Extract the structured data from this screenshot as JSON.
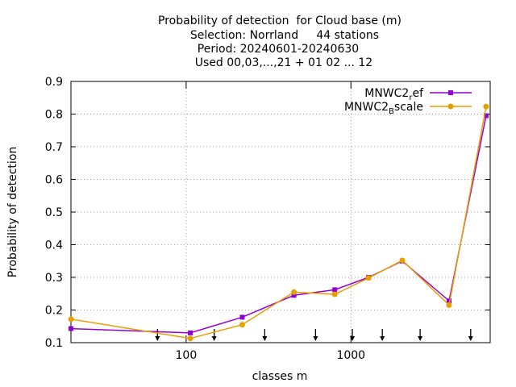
{
  "chart_data": {
    "type": "line",
    "title": [
      "Probability of detection  for Cloud base (m)",
      "Selection: Norrland     44 stations",
      "Period: 20240601-20240630",
      "Used 00,03,...,21 + 01 02 ... 12"
    ],
    "xlabel": "classes m",
    "ylabel": "Probability of detection",
    "xlog": true,
    "grid": true,
    "legend": "top-right",
    "xlim": [
      20,
      7000
    ],
    "xticks": [
      100,
      1000
    ],
    "ylim": [
      0.1,
      0.9
    ],
    "yticks": [
      0.1,
      0.2,
      0.3,
      0.4,
      0.5,
      0.6,
      0.7,
      0.8,
      0.9
    ],
    "x": [
      20,
      106,
      219,
      451,
      798,
      1280,
      2050,
      3940,
      6610
    ],
    "series": [
      {
        "name": "MNWC2_ref",
        "color": "#9400d3",
        "marker": "square",
        "values": [
          0.143,
          0.13,
          0.178,
          0.245,
          0.262,
          0.3,
          0.35,
          0.228,
          0.795
        ]
      },
      {
        "name": "MNWC2_Bscale",
        "color": "#e69f00",
        "marker": "circle",
        "values": [
          0.172,
          0.113,
          0.155,
          0.255,
          0.248,
          0.298,
          0.352,
          0.215,
          0.823
        ]
      }
    ],
    "arrows": [
      67,
      148,
      300,
      610,
      1020,
      1550,
      2630,
      5330
    ]
  }
}
